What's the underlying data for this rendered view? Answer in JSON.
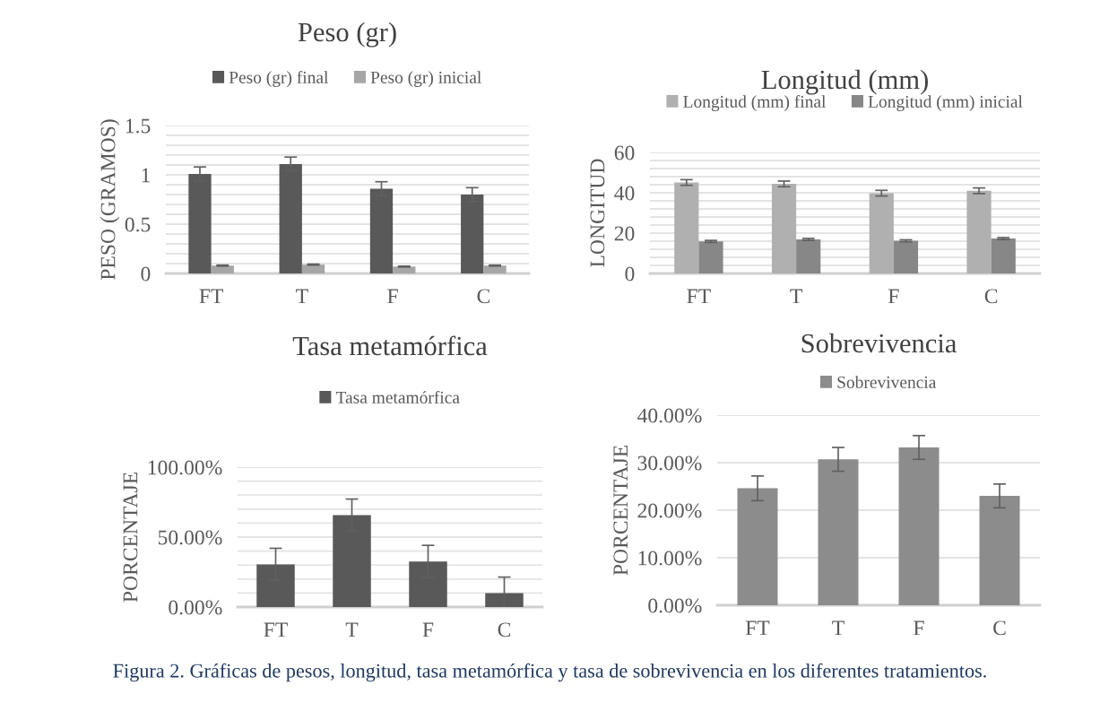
{
  "chart_data": [
    {
      "type": "bar",
      "title": "Peso (gr)",
      "ylabel": "PESO (GRAMOS)",
      "categories": [
        "FT",
        "T",
        "F",
        "C"
      ],
      "series": [
        {
          "name": "Peso (gr) final",
          "color": "#595959",
          "values": [
            1.01,
            1.11,
            0.86,
            0.8
          ],
          "errors": [
            0.07,
            0.07,
            0.07,
            0.07
          ]
        },
        {
          "name": "Peso (gr) inicial",
          "color": "#a6a6a6",
          "values": [
            0.08,
            0.09,
            0.07,
            0.08
          ],
          "errors": [
            0.005,
            0.005,
            0.005,
            0.005
          ]
        }
      ],
      "ylim": [
        0,
        1.5
      ],
      "yticks": [
        0,
        {
          "value": 0.1,
          "label": null
        },
        {
          "value": 0.2,
          "label": null
        },
        {
          "value": 0.3,
          "label": null
        },
        {
          "value": 0.4,
          "label": null
        },
        0.5,
        {
          "value": 0.6,
          "label": null
        },
        {
          "value": 0.7,
          "label": null
        },
        {
          "value": 0.8,
          "label": null
        },
        {
          "value": 0.9,
          "label": null
        },
        1,
        {
          "value": 1.1,
          "label": null
        },
        {
          "value": 1.2,
          "label": null
        },
        {
          "value": 1.3,
          "label": null
        },
        {
          "value": 1.4,
          "label": null
        },
        1.5
      ],
      "grid": "y",
      "legend": "top"
    },
    {
      "type": "bar",
      "title": "Longitud (mm)",
      "ylabel": "LONGITUD",
      "categories": [
        "FT",
        "T",
        "F",
        "C"
      ],
      "series": [
        {
          "name": "Longitud (mm) final",
          "color": "#b0b0b0",
          "values": [
            45.1,
            44.4,
            39.8,
            41.0
          ],
          "errors": [
            1.4,
            1.4,
            1.4,
            1.4
          ]
        },
        {
          "name": "Longitud (mm) inicial",
          "color": "#878787",
          "values": [
            15.9,
            16.9,
            16.2,
            17.3
          ],
          "errors": [
            0.5,
            0.5,
            0.5,
            0.5
          ]
        }
      ],
      "ylim": [
        0,
        60
      ],
      "yticks": [
        0,
        {
          "value": 4,
          "label": null
        },
        {
          "value": 8,
          "label": null
        },
        {
          "value": 12,
          "label": null
        },
        {
          "value": 16,
          "label": null
        },
        20,
        {
          "value": 24,
          "label": null
        },
        {
          "value": 28,
          "label": null
        },
        {
          "value": 32,
          "label": null
        },
        {
          "value": 36,
          "label": null
        },
        40,
        {
          "value": 44,
          "label": null
        },
        {
          "value": 48,
          "label": null
        },
        {
          "value": 52,
          "label": null
        },
        {
          "value": 56,
          "label": null
        },
        60
      ],
      "grid": "y",
      "legend": "top"
    },
    {
      "type": "bar",
      "title": "Tasa metamórfica",
      "ylabel": "PORCENTAJE",
      "categories": [
        "FT",
        "T",
        "F",
        "C"
      ],
      "series": [
        {
          "name": "Tasa metamórfica",
          "color": "#595959",
          "values": [
            30.5,
            65.7,
            32.6,
            9.9
          ],
          "errors": [
            11.5,
            11.5,
            11.5,
            11.5
          ]
        }
      ],
      "ylim": [
        0,
        100
      ],
      "yticks": [
        {
          "value": 0,
          "label": "0.00%"
        },
        {
          "value": 10,
          "label": null
        },
        {
          "value": 20,
          "label": null
        },
        {
          "value": 30,
          "label": null
        },
        {
          "value": 40,
          "label": null
        },
        {
          "value": 50,
          "label": "50.00%"
        },
        {
          "value": 60,
          "label": null
        },
        {
          "value": 70,
          "label": null
        },
        {
          "value": 80,
          "label": null
        },
        {
          "value": 90,
          "label": null
        },
        {
          "value": 100,
          "label": "100.00%"
        }
      ],
      "grid": "y",
      "legend": "top"
    },
    {
      "type": "bar",
      "title": "Sobrevivencia",
      "ylabel": "PORCENTAJE",
      "categories": [
        "FT",
        "T",
        "F",
        "C"
      ],
      "series": [
        {
          "name": "Sobrevivencia",
          "color": "#8c8c8c",
          "values": [
            24.6,
            30.7,
            33.2,
            23.0
          ],
          "errors": [
            2.6,
            2.5,
            2.5,
            2.5
          ]
        }
      ],
      "ylim": [
        0,
        40
      ],
      "yticks": [
        {
          "value": 0,
          "label": "0.00%"
        },
        {
          "value": 10,
          "label": "10.00%"
        },
        {
          "value": 20,
          "label": "20.00%"
        },
        {
          "value": 30,
          "label": "30.00%"
        },
        {
          "value": 40,
          "label": "40.00%"
        }
      ],
      "grid": "y",
      "legend": "top",
      "annotations": [
        "Figura 2. Gráficas de pesos, longitud, tasa metamórfica y tasa de sobrevivencia en los diferentes tratamientos."
      ]
    }
  ]
}
